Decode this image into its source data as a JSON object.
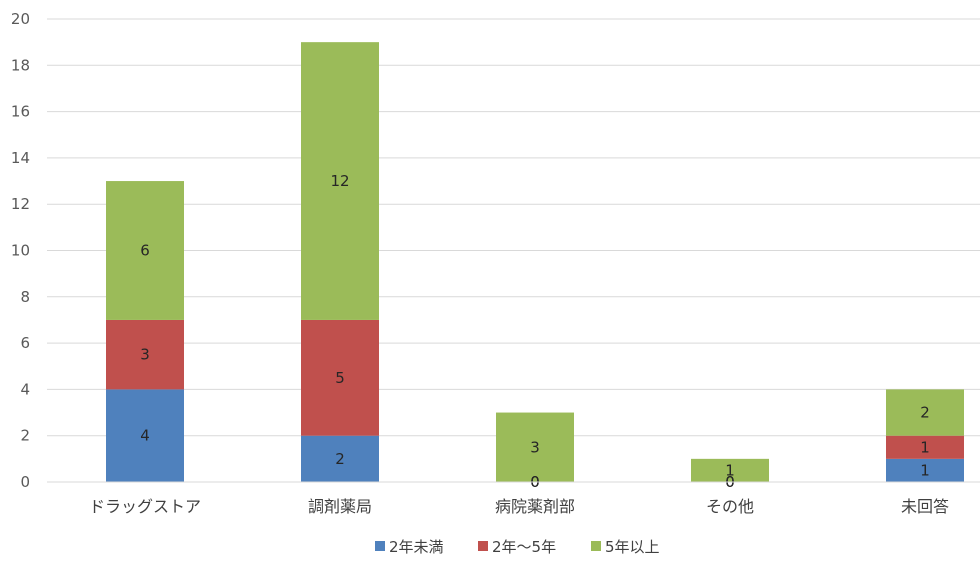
{
  "chart_data": {
    "type": "bar",
    "stacked": true,
    "title": "",
    "xlabel": "",
    "ylabel": "",
    "categories": [
      "ドラッグストア",
      "調剤薬局",
      "病院薬剤部",
      "その他",
      "未回答"
    ],
    "series": [
      {
        "name": "2年未満",
        "color": "#4f81bd",
        "values": [
          4,
          2,
          0,
          0,
          1
        ]
      },
      {
        "name": "2年～5年",
        "color": "#c0504d",
        "values": [
          3,
          5,
          0,
          0,
          1
        ]
      },
      {
        "name": "5年以上",
        "color": "#9bbb59",
        "values": [
          6,
          12,
          3,
          1,
          2
        ]
      }
    ],
    "ylim": [
      0,
      20
    ],
    "yticks": [
      0,
      2,
      4,
      6,
      8,
      10,
      12,
      14,
      16,
      18,
      20
    ],
    "grid": true,
    "legend_position": "bottom",
    "data_labels": true
  }
}
